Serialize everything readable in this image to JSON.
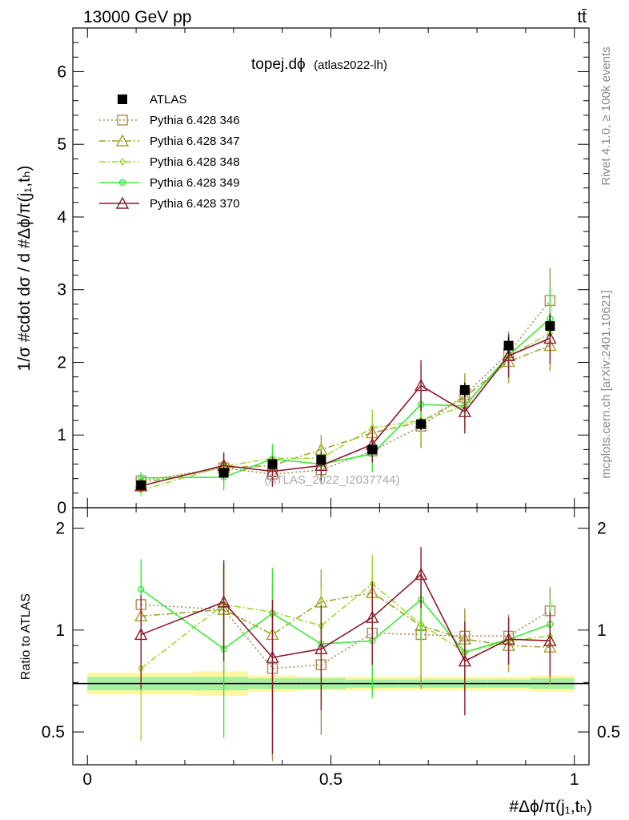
{
  "header": {
    "left": "13000 GeV pp",
    "right": "tt̄"
  },
  "side": {
    "rivet": "Rivet 4.1.0, ≥ 100k events",
    "mcplots": "mcplots.cern.ch [arXiv:2401.10621]"
  },
  "chart_data": {
    "type": "line",
    "title": "topej.dϕ",
    "title_suffix": "(atlas2022-lh)",
    "watermark": "(ATLAS_2022_I2037744)",
    "ylabel": "1/σ #cdot dσ / d #Δϕ/π(j₁,tₕ)",
    "ratio_ylabel": "Ratio to ATLAS",
    "xlabel": "#Δϕ/π(j₁,tₕ)",
    "xlim": [
      -0.03,
      1.03
    ],
    "ylim": [
      0,
      6.6
    ],
    "ratio_ylim": [
      0.4,
      2.3
    ],
    "xticks": [
      "0",
      "0.5",
      "1"
    ],
    "yticks": [
      "0",
      "1",
      "2",
      "3",
      "4",
      "5",
      "6"
    ],
    "ratio_yticks": [
      "0.5",
      "1",
      "2"
    ],
    "x": [
      0.11,
      0.28,
      0.38,
      0.48,
      0.585,
      0.685,
      0.775,
      0.865,
      0.95
    ],
    "bin_edges": [
      0,
      0.22,
      0.33,
      0.43,
      0.53,
      0.64,
      0.73,
      0.82,
      0.91,
      1.0
    ],
    "data": {
      "name": "ATLAS",
      "values": [
        0.31,
        0.48,
        0.6,
        0.66,
        0.8,
        1.15,
        1.62,
        2.23,
        2.5
      ],
      "errors": [
        0.03,
        0.04,
        0.05,
        0.05,
        0.06,
        0.08,
        0.1,
        0.12,
        0.14
      ],
      "band_inner": [
        0.05,
        0.05,
        0.04,
        0.04,
        0.03,
        0.03,
        0.03,
        0.03,
        0.04
      ],
      "band_outer": [
        0.08,
        0.09,
        0.06,
        0.05,
        0.05,
        0.05,
        0.05,
        0.05,
        0.06
      ]
    },
    "series": [
      {
        "name": "Pythia 6.428 346",
        "color": "#b08a52",
        "marker": "square",
        "line": "dotted",
        "values": [
          0.37,
          0.55,
          0.46,
          0.52,
          0.78,
          1.12,
          1.55,
          2.13,
          2.85
        ],
        "errors": [
          0.08,
          0.18,
          0.18,
          0.2,
          0.2,
          0.3,
          0.3,
          0.3,
          0.45
        ]
      },
      {
        "name": "Pythia 6.428 347",
        "color": "#a2a22e",
        "marker": "triangle",
        "line": "dashdot",
        "values": [
          0.34,
          0.55,
          0.58,
          0.8,
          1.03,
          1.18,
          1.52,
          2.01,
          2.23
        ],
        "errors": [
          0.08,
          0.18,
          0.2,
          0.2,
          0.25,
          0.3,
          0.3,
          0.3,
          0.35
        ]
      },
      {
        "name": "Pythia 6.428 348",
        "color": "#9adc2c",
        "marker": "diamond",
        "line": "dashdot",
        "values": [
          0.24,
          0.57,
          0.68,
          0.68,
          1.1,
          1.2,
          1.4,
          2.08,
          2.4
        ],
        "errors": [
          0.08,
          0.18,
          0.2,
          0.2,
          0.25,
          0.3,
          0.3,
          0.3,
          0.35
        ]
      },
      {
        "name": "Pythia 6.428 349",
        "color": "#3ee83a",
        "marker": "circle",
        "line": "solid",
        "values": [
          0.41,
          0.42,
          0.67,
          0.6,
          0.74,
          1.42,
          1.4,
          2.1,
          2.6
        ],
        "errors": [
          0.08,
          0.18,
          0.2,
          0.2,
          0.25,
          0.3,
          0.3,
          0.3,
          0.45
        ]
      },
      {
        "name": "Pythia 6.428 370",
        "color": "#8b1a2c",
        "marker": "triangle",
        "line": "solid",
        "values": [
          0.3,
          0.58,
          0.5,
          0.58,
          0.87,
          1.68,
          1.32,
          2.09,
          2.33
        ],
        "errors": [
          0.08,
          0.18,
          0.2,
          0.2,
          0.25,
          0.35,
          0.3,
          0.3,
          0.35
        ]
      }
    ],
    "ratios": [
      [
        1.19,
        1.15,
        0.77,
        0.79,
        0.98,
        0.97,
        0.96,
        0.96,
        1.14
      ],
      [
        1.1,
        1.15,
        0.97,
        1.21,
        1.29,
        1.03,
        0.94,
        0.9,
        0.89
      ],
      [
        0.77,
        1.19,
        1.13,
        1.03,
        1.37,
        1.04,
        0.86,
        0.93,
        0.96
      ],
      [
        1.32,
        0.88,
        1.12,
        0.91,
        0.93,
        1.23,
        0.86,
        0.94,
        1.04
      ],
      [
        0.97,
        1.21,
        0.83,
        0.88,
        1.09,
        1.46,
        0.81,
        0.94,
        0.93
      ]
    ],
    "ratio_errors": [
      [
        0.3,
        0.4,
        0.4,
        0.3,
        0.3,
        0.3,
        0.2,
        0.15,
        0.2
      ],
      [
        0.3,
        0.4,
        0.4,
        0.3,
        0.3,
        0.3,
        0.2,
        0.15,
        0.2
      ],
      [
        0.3,
        0.4,
        0.4,
        0.3,
        0.3,
        0.3,
        0.2,
        0.15,
        0.2
      ],
      [
        0.3,
        0.4,
        0.4,
        0.3,
        0.3,
        0.3,
        0.2,
        0.15,
        0.2
      ],
      [
        0.3,
        0.4,
        0.4,
        0.3,
        0.3,
        0.3,
        0.25,
        0.15,
        0.2
      ]
    ]
  }
}
